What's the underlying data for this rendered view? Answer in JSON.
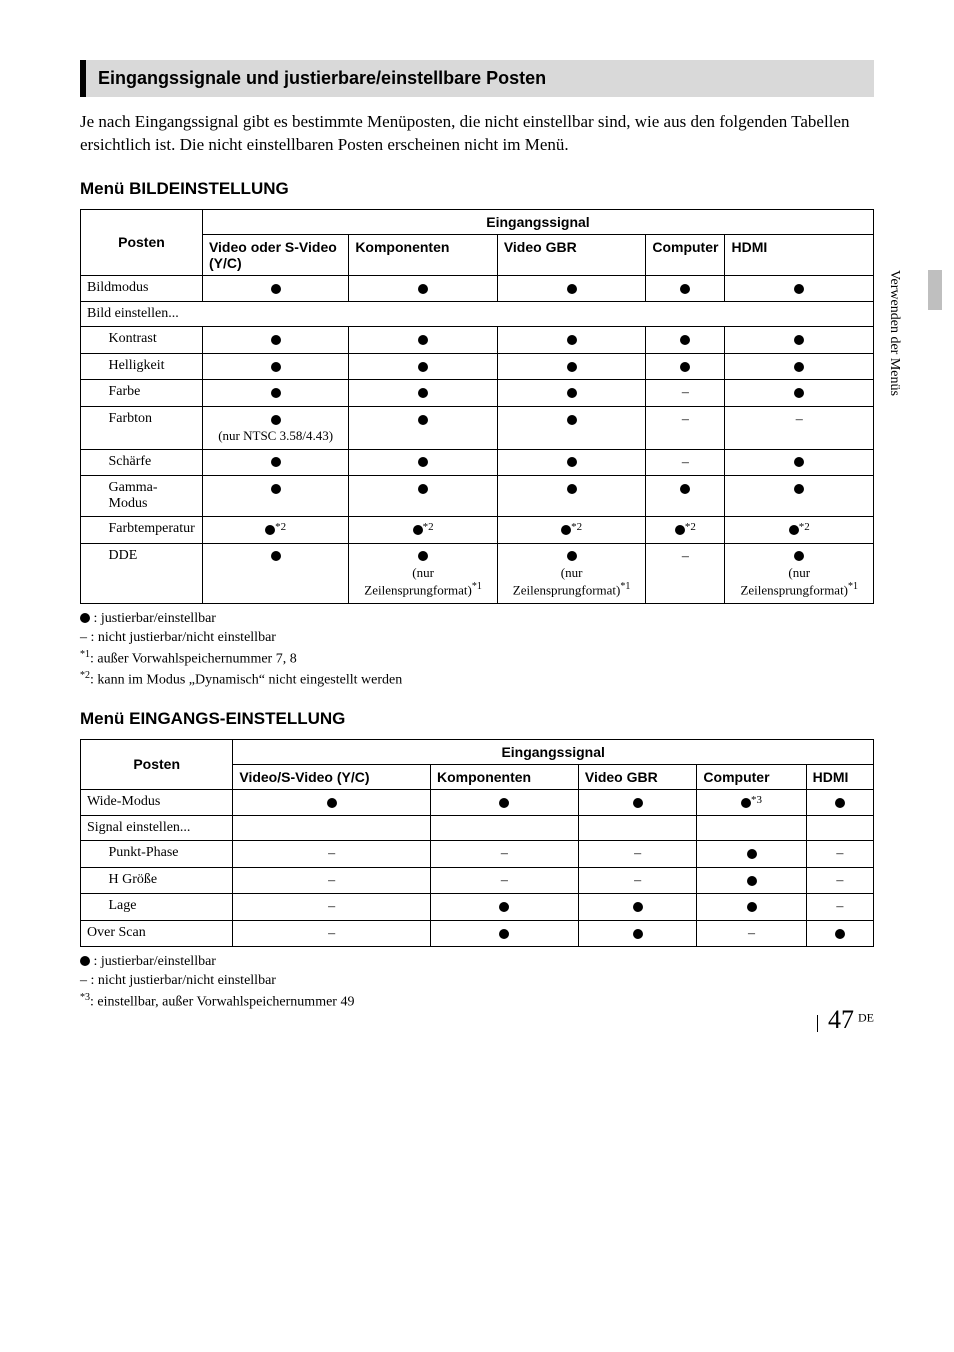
{
  "page": {
    "section_title": "Eingangssignale und justierbare/einstellbare Posten",
    "intro": "Je nach Eingangssignal gibt es bestimmte Menüposten, die nicht einstellbar sind, wie aus den folgenden Tabellen ersichtlich ist. Die nicht einstellbaren Posten erscheinen nicht im Menü.",
    "side_tab": "Verwenden der Menüs",
    "page_number": "47",
    "page_lang": "DE"
  },
  "symbols": {
    "dash": "–"
  },
  "table1": {
    "heading": "Menü BILDEINSTELLUNG",
    "header_posten": "Posten",
    "header_signal": "Eingangssignal",
    "cols": [
      "Video oder S-Video (Y/C)",
      "Komponenten",
      "Video GBR",
      "Computer",
      "HDMI"
    ],
    "rows": [
      {
        "label": "Bildmodus",
        "indent": false,
        "cells": [
          {
            "dot": true
          },
          {
            "dot": true
          },
          {
            "dot": true
          },
          {
            "dot": true
          },
          {
            "dot": true
          }
        ]
      },
      {
        "label": "Bild einstellen...",
        "indent": false,
        "span": true
      },
      {
        "label": "Kontrast",
        "indent": true,
        "cells": [
          {
            "dot": true
          },
          {
            "dot": true
          },
          {
            "dot": true
          },
          {
            "dot": true
          },
          {
            "dot": true
          }
        ]
      },
      {
        "label": "Helligkeit",
        "indent": true,
        "cells": [
          {
            "dot": true
          },
          {
            "dot": true
          },
          {
            "dot": true
          },
          {
            "dot": true
          },
          {
            "dot": true
          }
        ]
      },
      {
        "label": "Farbe",
        "indent": true,
        "cells": [
          {
            "dot": true
          },
          {
            "dot": true
          },
          {
            "dot": true
          },
          {
            "dash": true
          },
          {
            "dot": true
          }
        ]
      },
      {
        "label": "Farbton",
        "indent": true,
        "cells": [
          {
            "dot": true,
            "note": "(nur NTSC 3.58/4.43)"
          },
          {
            "dot": true
          },
          {
            "dot": true
          },
          {
            "dash": true
          },
          {
            "dash": true
          }
        ]
      },
      {
        "label": "Schärfe",
        "indent": true,
        "cells": [
          {
            "dot": true
          },
          {
            "dot": true
          },
          {
            "dot": true
          },
          {
            "dash": true
          },
          {
            "dot": true
          }
        ]
      },
      {
        "label": "Gamma-Modus",
        "indent": true,
        "cells": [
          {
            "dot": true
          },
          {
            "dot": true
          },
          {
            "dot": true
          },
          {
            "dot": true
          },
          {
            "dot": true
          }
        ]
      },
      {
        "label": "Farbtemperatur",
        "indent": true,
        "cells": [
          {
            "dot": true,
            "sup": "*2"
          },
          {
            "dot": true,
            "sup": "*2"
          },
          {
            "dot": true,
            "sup": "*2"
          },
          {
            "dot": true,
            "sup": "*2"
          },
          {
            "dot": true,
            "sup": "*2"
          }
        ]
      },
      {
        "label": "DDE",
        "indent": true,
        "cells": [
          {
            "dot": true
          },
          {
            "dot": true,
            "note": "(nur Zeilensprungformat)",
            "note_sup": "*1"
          },
          {
            "dot": true,
            "note": "(nur Zeilensprungformat)",
            "note_sup": "*1"
          },
          {
            "dash": true
          },
          {
            "dot": true,
            "note": "(nur Zeilensprungformat)",
            "note_sup": "*1"
          }
        ]
      }
    ],
    "legend": [
      {
        "prefix_dot": true,
        "text": " : justierbar/einstellbar"
      },
      {
        "text": "– : nicht justierbar/nicht einstellbar"
      },
      {
        "sup": "*1",
        "text": ": außer Vorwahlspeichernummer 7, 8"
      },
      {
        "sup": "*2",
        "text": ": kann im Modus „Dynamisch“ nicht eingestellt werden"
      }
    ]
  },
  "table2": {
    "heading": "Menü EINGANGS-EINSTELLUNG",
    "header_posten": "Posten",
    "header_signal": "Eingangssignal",
    "cols": [
      "Video/S-Video (Y/C)",
      "Komponenten",
      "Video GBR",
      "Computer",
      "HDMI"
    ],
    "rows": [
      {
        "label": "Wide-Modus",
        "indent": false,
        "cells": [
          {
            "dot": true
          },
          {
            "dot": true
          },
          {
            "dot": true
          },
          {
            "dot": true,
            "sup": "*3"
          },
          {
            "dot": true
          }
        ]
      },
      {
        "label": "Signal einstellen...",
        "indent": false,
        "cells": [
          {},
          {},
          {},
          {},
          {}
        ]
      },
      {
        "label": "Punkt-Phase",
        "indent": true,
        "cells": [
          {
            "dash": true
          },
          {
            "dash": true
          },
          {
            "dash": true
          },
          {
            "dot": true
          },
          {
            "dash": true
          }
        ]
      },
      {
        "label": "H Größe",
        "indent": true,
        "cells": [
          {
            "dash": true
          },
          {
            "dash": true
          },
          {
            "dash": true
          },
          {
            "dot": true
          },
          {
            "dash": true
          }
        ]
      },
      {
        "label": "Lage",
        "indent": true,
        "cells": [
          {
            "dash": true
          },
          {
            "dot": true
          },
          {
            "dot": true
          },
          {
            "dot": true
          },
          {
            "dash": true
          }
        ]
      },
      {
        "label": "Over Scan",
        "indent": false,
        "cells": [
          {
            "dash": true
          },
          {
            "dot": true
          },
          {
            "dot": true
          },
          {
            "dash": true
          },
          {
            "dot": true
          }
        ]
      }
    ],
    "legend": [
      {
        "prefix_dot": true,
        "text": " : justierbar/einstellbar"
      },
      {
        "text": "– : nicht justierbar/nicht einstellbar"
      },
      {
        "sup": "*3",
        "text": ": einstellbar, außer Vorwahlspeichernummer 49"
      }
    ]
  }
}
